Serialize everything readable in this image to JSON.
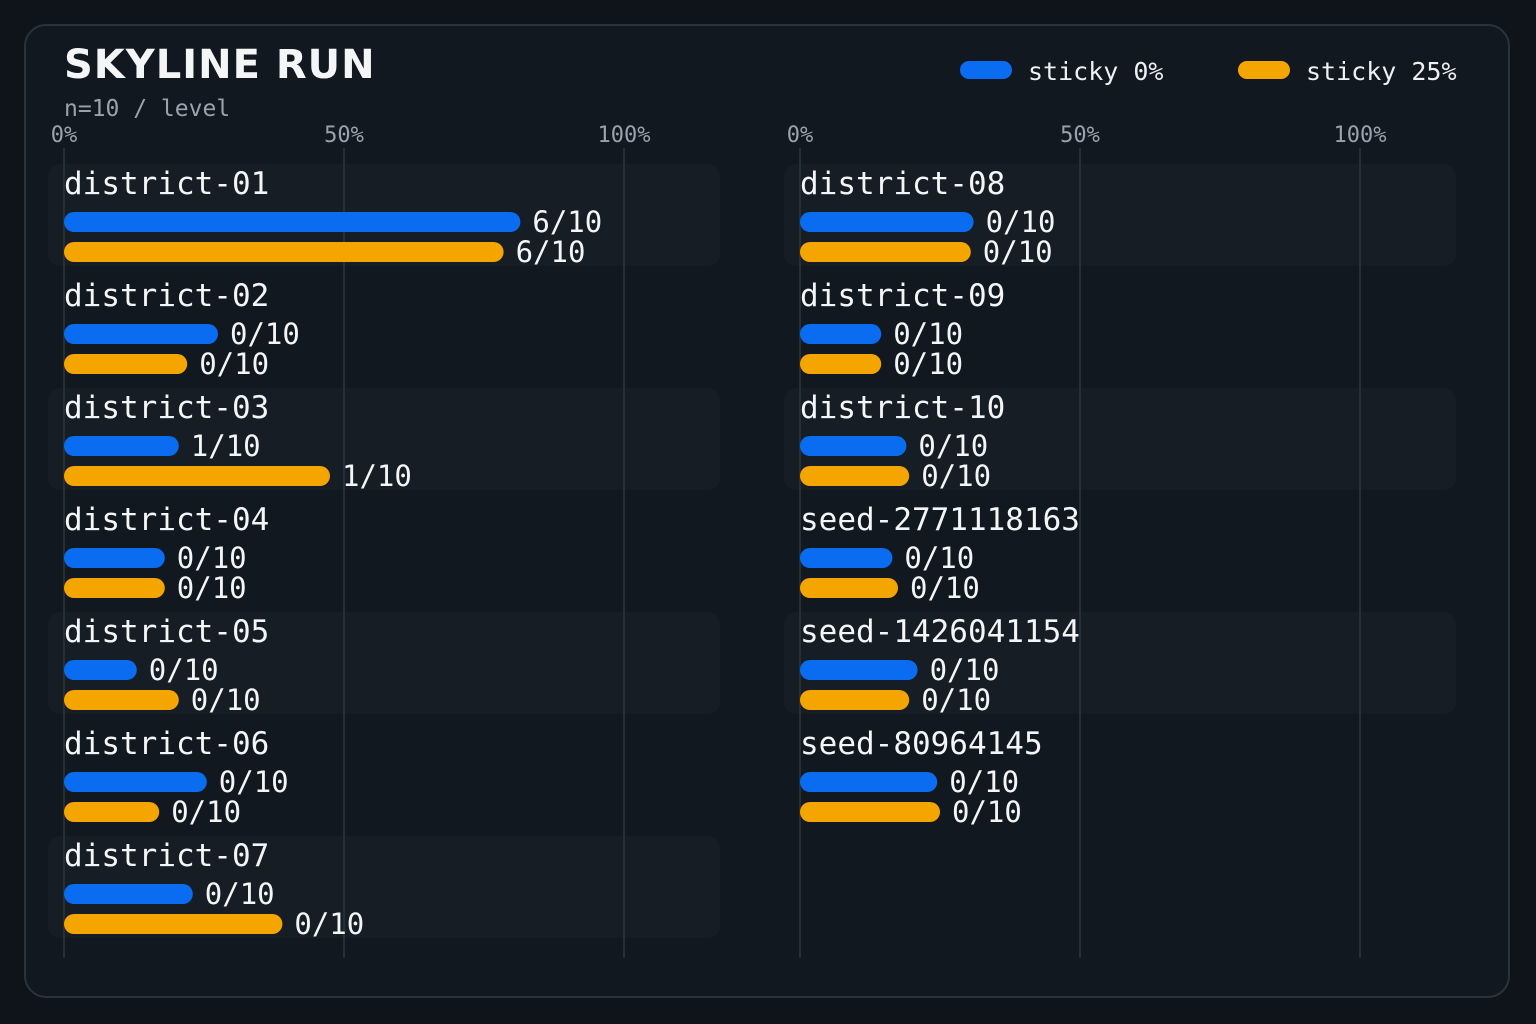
{
  "colors": {
    "background": "#0f141a",
    "card": "#121820",
    "series_a": "#0a6cf0",
    "series_b": "#f5a500",
    "grid": "#262e38"
  },
  "chart_data": {
    "type": "bar",
    "orientation": "horizontal",
    "title": "SKYLINE RUN",
    "subtitle": "n=10 / level",
    "xlim": [
      0,
      100
    ],
    "x_unit": "%",
    "xticks": [
      "0%",
      "50%",
      "100%"
    ],
    "grid": true,
    "legend_position": "top-right",
    "series": [
      {
        "name": "sticky 0%",
        "color": "#0a6cf0",
        "values": [
          81.5,
          27.5,
          20.5,
          18,
          13,
          25.5,
          23,
          31,
          14.5,
          19,
          16.5,
          21,
          24.5
        ],
        "labels": [
          "6/10",
          "0/10",
          "1/10",
          "0/10",
          "0/10",
          "0/10",
          "0/10",
          "0/10",
          "0/10",
          "0/10",
          "0/10",
          "0/10",
          "0/10"
        ]
      },
      {
        "name": "sticky 25%",
        "color": "#f5a500",
        "values": [
          78.5,
          22,
          47.5,
          18,
          20.5,
          17,
          39,
          30.5,
          14.5,
          19.5,
          17.5,
          19.5,
          25
        ],
        "labels": [
          "6/10",
          "0/10",
          "1/10",
          "0/10",
          "0/10",
          "0/10",
          "0/10",
          "0/10",
          "0/10",
          "0/10",
          "0/10",
          "0/10",
          "0/10"
        ]
      }
    ],
    "panels": [
      {
        "categories": [
          "district-01",
          "district-02",
          "district-03",
          "district-04",
          "district-05",
          "district-06",
          "district-07"
        ]
      },
      {
        "categories": [
          "district-08",
          "district-09",
          "district-10",
          "seed-2771118163",
          "seed-1426041154",
          "seed-80964145"
        ]
      }
    ]
  }
}
